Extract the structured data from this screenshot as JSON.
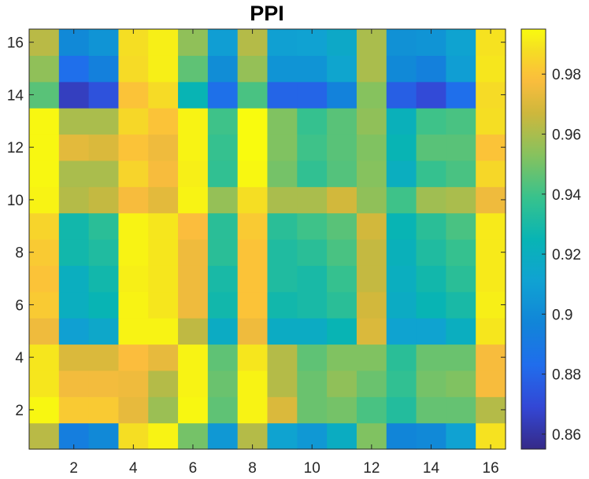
{
  "chart_data": {
    "type": "heatmap",
    "title": "PPI",
    "xlabel": "",
    "ylabel": "",
    "x": [
      1,
      2,
      3,
      4,
      5,
      6,
      7,
      8,
      9,
      10,
      11,
      12,
      13,
      14,
      15,
      16
    ],
    "y": [
      1,
      2,
      3,
      4,
      5,
      6,
      7,
      8,
      9,
      10,
      11,
      12,
      13,
      14,
      15,
      16
    ],
    "x_ticks": [
      "2",
      "4",
      "6",
      "8",
      "10",
      "12",
      "14",
      "16"
    ],
    "y_ticks": [
      "2",
      "4",
      "6",
      "8",
      "10",
      "12",
      "14",
      "16"
    ],
    "colorbar": {
      "min": 0.855,
      "max": 0.995,
      "ticks": [
        "0.86",
        "0.88",
        "0.9",
        "0.92",
        "0.94",
        "0.96",
        "0.98"
      ],
      "colormap": "parula"
    },
    "grid": false,
    "values": [
      [
        0.963,
        0.893,
        0.899,
        0.988,
        0.993,
        0.95,
        0.906,
        0.962,
        0.912,
        0.906,
        0.919,
        0.952,
        0.897,
        0.899,
        0.911,
        0.989
      ],
      [
        0.994,
        0.982,
        0.982,
        0.973,
        0.957,
        0.994,
        0.946,
        0.993,
        0.97,
        0.948,
        0.95,
        0.942,
        0.933,
        0.947,
        0.947,
        0.962
      ],
      [
        0.99,
        0.976,
        0.976,
        0.975,
        0.962,
        0.993,
        0.948,
        0.993,
        0.962,
        0.948,
        0.955,
        0.948,
        0.937,
        0.95,
        0.952,
        0.977
      ],
      [
        0.99,
        0.97,
        0.97,
        0.978,
        0.973,
        0.993,
        0.946,
        0.99,
        0.962,
        0.946,
        0.952,
        0.952,
        0.935,
        0.948,
        0.948,
        0.977
      ],
      [
        0.975,
        0.91,
        0.915,
        0.993,
        0.993,
        0.964,
        0.918,
        0.975,
        0.918,
        0.918,
        0.925,
        0.97,
        0.912,
        0.912,
        0.92,
        0.99
      ],
      [
        0.982,
        0.92,
        0.925,
        0.993,
        0.99,
        0.975,
        0.928,
        0.98,
        0.928,
        0.93,
        0.935,
        0.968,
        0.918,
        0.925,
        0.93,
        0.992
      ],
      [
        0.98,
        0.92,
        0.928,
        0.992,
        0.99,
        0.975,
        0.93,
        0.98,
        0.932,
        0.93,
        0.938,
        0.965,
        0.92,
        0.928,
        0.935,
        0.991
      ],
      [
        0.982,
        0.928,
        0.932,
        0.993,
        0.99,
        0.975,
        0.935,
        0.98,
        0.932,
        0.935,
        0.942,
        0.965,
        0.922,
        0.932,
        0.938,
        0.991
      ],
      [
        0.985,
        0.928,
        0.935,
        0.993,
        0.99,
        0.978,
        0.935,
        0.982,
        0.935,
        0.94,
        0.945,
        0.968,
        0.925,
        0.935,
        0.942,
        0.991
      ],
      [
        0.993,
        0.962,
        0.965,
        0.977,
        0.972,
        0.993,
        0.956,
        0.988,
        0.96,
        0.96,
        0.968,
        0.955,
        0.94,
        0.958,
        0.96,
        0.975
      ],
      [
        0.994,
        0.96,
        0.96,
        0.985,
        0.977,
        0.992,
        0.937,
        0.994,
        0.95,
        0.937,
        0.944,
        0.953,
        0.92,
        0.938,
        0.942,
        0.986
      ],
      [
        0.994,
        0.972,
        0.97,
        0.98,
        0.975,
        0.993,
        0.938,
        0.995,
        0.952,
        0.94,
        0.945,
        0.952,
        0.925,
        0.945,
        0.945,
        0.98
      ],
      [
        0.994,
        0.96,
        0.96,
        0.986,
        0.98,
        0.993,
        0.94,
        0.995,
        0.952,
        0.938,
        0.945,
        0.955,
        0.922,
        0.94,
        0.942,
        0.988
      ],
      [
        0.945,
        0.865,
        0.873,
        0.98,
        0.987,
        0.925,
        0.885,
        0.942,
        0.88,
        0.88,
        0.895,
        0.953,
        0.878,
        0.87,
        0.884,
        0.987
      ],
      [
        0.955,
        0.884,
        0.894,
        0.987,
        0.992,
        0.946,
        0.901,
        0.956,
        0.904,
        0.904,
        0.913,
        0.96,
        0.899,
        0.894,
        0.909,
        0.99
      ],
      [
        0.963,
        0.899,
        0.904,
        0.988,
        0.992,
        0.955,
        0.909,
        0.962,
        0.91,
        0.911,
        0.916,
        0.96,
        0.903,
        0.904,
        0.912,
        0.989
      ]
    ]
  }
}
